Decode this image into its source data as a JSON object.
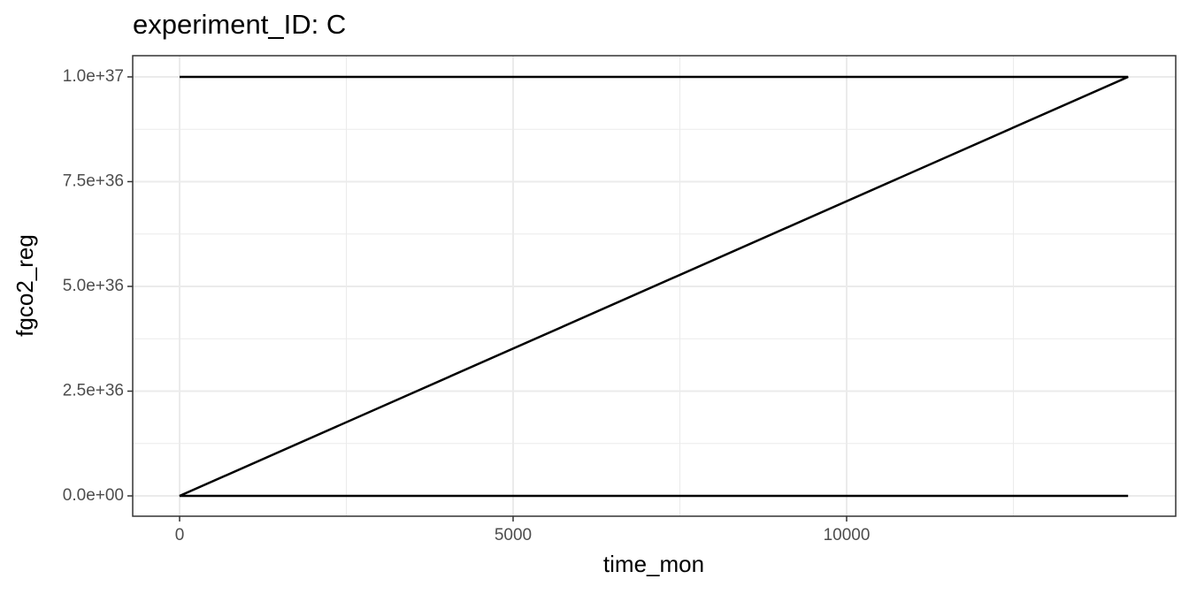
{
  "chart_data": {
    "type": "line",
    "title": "experiment_ID: C",
    "x_label": "time_mon",
    "y_label": "fgco2_reg",
    "x": [
      0,
      14220,
      0,
      14220
    ],
    "series": [
      {
        "color": "#000000",
        "values": [
          1e+37,
          1e+37,
          0,
          0
        ]
      }
    ],
    "xlim": [
      -703,
      14934
    ],
    "ylim": [
      -4.85e+35,
      1.0506e+37
    ],
    "xticks": [
      0,
      5000,
      10000
    ],
    "yticks": [
      {
        "value": 0,
        "label": "0.0e+00"
      },
      {
        "value": 2.5e+36,
        "label": "2.5e+36"
      },
      {
        "value": 5e+36,
        "label": "5.0e+36"
      },
      {
        "value": 7.5e+36,
        "label": "7.5e+36"
      },
      {
        "value": 1e+37,
        "label": "1.0e+37"
      }
    ],
    "x_minor_grid": [
      2500,
      7500,
      12500
    ],
    "y_minor_grid": [
      1.25e+36,
      3.75e+36,
      6.25e+36,
      8.75e+36
    ],
    "grid": true
  }
}
